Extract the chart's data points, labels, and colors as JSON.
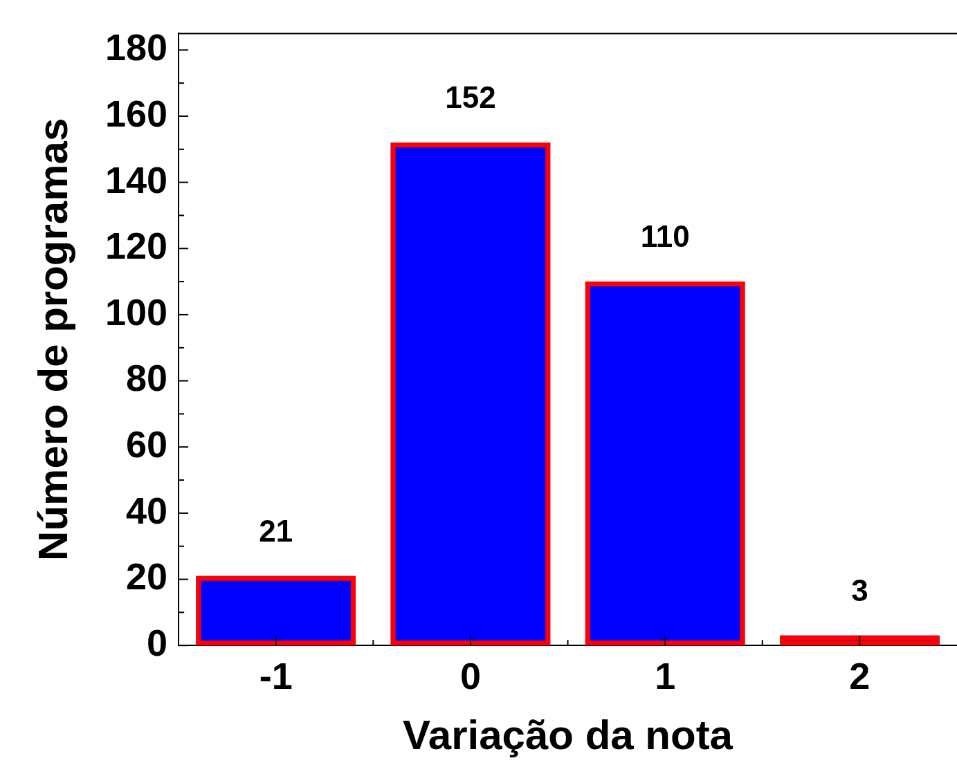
{
  "chart_data": {
    "type": "bar",
    "xlabel": "Variação da nota",
    "ylabel": "Número de programas",
    "categories": [
      "-1",
      "0",
      "1",
      "2"
    ],
    "values": [
      21,
      152,
      110,
      3
    ],
    "color": "#0000ff",
    "ylim": [
      0,
      185
    ],
    "yticks": [
      0,
      20,
      40,
      60,
      80,
      100,
      120,
      140,
      160,
      180
    ],
    "data_labels": true,
    "grid": false,
    "legend": false
  }
}
